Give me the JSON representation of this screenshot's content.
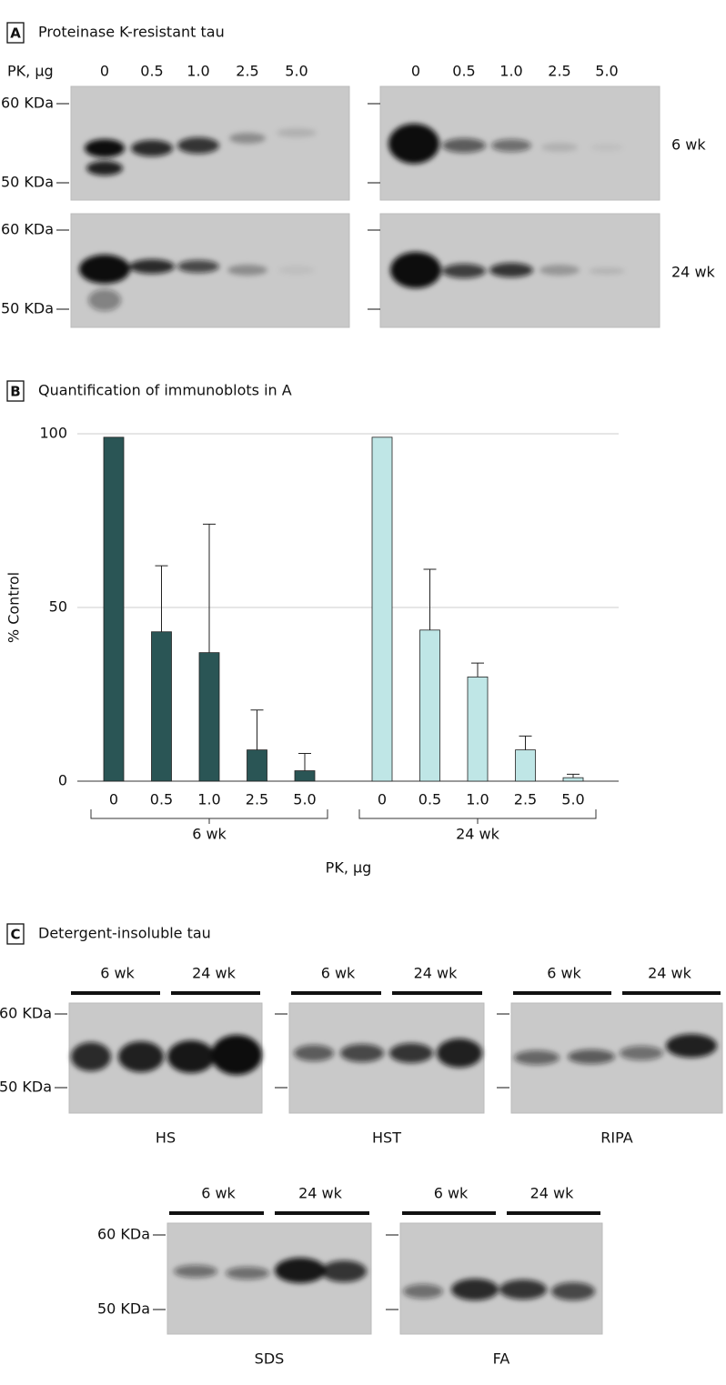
{
  "panel_a": {
    "label": "A",
    "title": "Proteinase K-resistant tau",
    "pk_label": "PK, µg",
    "doses": [
      "0",
      "0.5",
      "1.0",
      "2.5",
      "5.0"
    ],
    "markers": [
      "60 KDa",
      "50 KDa"
    ],
    "rows": [
      "6 wk",
      "24 wk"
    ]
  },
  "chart_data": {
    "type": "bar",
    "label": "B",
    "title": "Quantification of immunoblots in A",
    "y_label": "% Control",
    "x_label": "PK, µg",
    "categories": [
      "0",
      "0.5",
      "1.0",
      "2.5",
      "5.0"
    ],
    "series": [
      {
        "name": "6 wk",
        "color": "#2a5555",
        "values": [
          99,
          43,
          37,
          9,
          3
        ],
        "errors": [
          null,
          19,
          37,
          11.5,
          5
        ]
      },
      {
        "name": "24 wk",
        "color": "#bfe6e6",
        "values": [
          99,
          43.5,
          30,
          9,
          1
        ],
        "errors": [
          null,
          17.5,
          4,
          4,
          1
        ]
      }
    ],
    "ylim": [
      0,
      100
    ],
    "yticks": [
      0,
      50,
      100
    ],
    "grid": true
  },
  "panel_c": {
    "label": "C",
    "title": "Detergent-insoluble tau",
    "markers": [
      "60 KDa",
      "50 KDa"
    ],
    "blots": [
      {
        "name": "HS",
        "groups": [
          "6 wk",
          "24 wk"
        ]
      },
      {
        "name": "HST",
        "groups": [
          "6 wk",
          "24 wk"
        ]
      },
      {
        "name": "RIPA",
        "groups": [
          "6 wk",
          "24 wk"
        ]
      },
      {
        "name": "SDS",
        "groups": [
          "6 wk",
          "24 wk"
        ]
      },
      {
        "name": "FA",
        "groups": [
          "6 wk",
          "24 wk"
        ]
      }
    ]
  }
}
